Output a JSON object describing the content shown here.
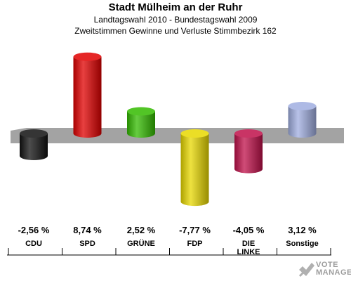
{
  "header": {
    "title": "Stadt Mülheim an der Ruhr",
    "subtitle": "Landtagswahl 2010 - Bundestagswahl 2009",
    "subtitle2": "Zweitstimmen Gewinne und Verluste Stimmbezirk 162"
  },
  "chart_data": {
    "type": "bar",
    "categories": [
      "CDU",
      "SPD",
      "GRÜNE",
      "FDP",
      "DIE LINKE",
      "Sonstige"
    ],
    "values": [
      -2.56,
      8.74,
      2.52,
      -7.77,
      -4.05,
      3.12
    ],
    "value_labels": [
      "-2,56 %",
      "8,74 %",
      "2,52 %",
      "-7,77 %",
      "-4,05 %",
      "3,12 %"
    ],
    "colors": [
      "#111111",
      "#e00000",
      "#33bb00",
      "#e8d800",
      "#c0104a",
      "#a0aee0"
    ],
    "title": "Stadt Mülheim an der Ruhr",
    "subtitle": "Landtagswahl 2010 - Bundestagswahl 2009",
    "xlabel": "",
    "ylabel": "",
    "grid": false,
    "legend": "none"
  },
  "logo": {
    "line1": "VOTE",
    "line2": "MANAGER",
    "icon": "checkmark-x-icon"
  }
}
